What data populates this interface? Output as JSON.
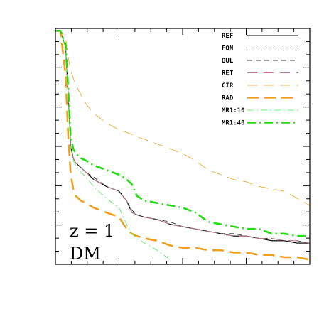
{
  "chart_data": {
    "type": "line",
    "x": [
      0.0,
      0.02,
      0.04,
      0.05,
      0.06,
      0.07,
      0.08,
      0.1,
      0.12,
      0.15,
      0.2,
      0.25,
      0.28,
      0.3,
      0.32,
      0.35,
      0.4,
      0.45,
      0.5,
      0.55,
      0.6,
      0.65,
      0.7,
      0.75,
      0.8,
      0.85,
      0.9,
      0.95,
      1.0
    ],
    "xlim": [
      0,
      1
    ],
    "ylim": [
      0,
      1
    ],
    "grid": false,
    "legend_position": "top-right",
    "series": [
      {
        "name": "REF",
        "color": "#000000",
        "style": "solid",
        "width": 1.1,
        "values": [
          0.99,
          0.99,
          0.92,
          0.72,
          0.5,
          0.45,
          0.43,
          0.41,
          0.39,
          0.36,
          0.33,
          0.31,
          0.27,
          0.22,
          0.21,
          0.2,
          0.19,
          0.17,
          0.16,
          0.15,
          0.14,
          0.13,
          0.12,
          0.12,
          0.11,
          0.1,
          0.1,
          0.09,
          0.09
        ]
      },
      {
        "name": "FON",
        "color": "#000000",
        "style": "dotted",
        "width": 1.0,
        "values": [
          0.99,
          0.99,
          0.92,
          0.72,
          0.5,
          0.45,
          0.43,
          0.41,
          0.39,
          0.36,
          0.33,
          0.31,
          0.27,
          0.22,
          0.21,
          0.2,
          0.19,
          0.17,
          0.16,
          0.15,
          0.14,
          0.13,
          0.12,
          0.12,
          0.11,
          0.1,
          0.1,
          0.09,
          0.09
        ]
      },
      {
        "name": "BUL",
        "color": "#444444",
        "style": "dashed",
        "width": 1.0,
        "values": [
          0.99,
          0.99,
          0.92,
          0.72,
          0.5,
          0.45,
          0.43,
          0.41,
          0.39,
          0.37,
          0.33,
          0.31,
          0.27,
          0.23,
          0.21,
          0.2,
          0.19,
          0.18,
          0.16,
          0.15,
          0.14,
          0.13,
          0.13,
          0.12,
          0.11,
          0.11,
          0.1,
          0.1,
          0.09
        ]
      },
      {
        "name": "RET",
        "color": "#c0788a",
        "style": "longdash",
        "width": 1.0,
        "values": [
          0.99,
          0.99,
          0.92,
          0.72,
          0.5,
          0.45,
          0.43,
          0.41,
          0.39,
          0.36,
          0.33,
          0.31,
          0.27,
          0.22,
          0.21,
          0.2,
          0.19,
          0.17,
          0.16,
          0.15,
          0.14,
          0.13,
          0.12,
          0.12,
          0.11,
          0.11,
          0.1,
          0.1,
          0.09
        ]
      },
      {
        "name": "CIR",
        "color": "#f0a020",
        "style": "longdash",
        "width": 0.8,
        "values": [
          0.99,
          0.99,
          0.96,
          0.88,
          0.82,
          0.79,
          0.76,
          0.72,
          0.68,
          0.64,
          0.6,
          0.57,
          0.56,
          0.55,
          0.54,
          0.53,
          0.51,
          0.49,
          0.47,
          0.44,
          0.4,
          0.38,
          0.36,
          0.35,
          0.33,
          0.32,
          0.31,
          0.28,
          0.25
        ]
      },
      {
        "name": "RAD",
        "color": "#f0a020",
        "style": "longdash",
        "width": 2.6,
        "values": [
          0.99,
          0.99,
          0.8,
          0.55,
          0.38,
          0.32,
          0.29,
          0.27,
          0.26,
          0.24,
          0.22,
          0.2,
          0.15,
          0.13,
          0.12,
          0.11,
          0.1,
          0.08,
          0.07,
          0.07,
          0.06,
          0.06,
          0.05,
          0.05,
          0.04,
          0.04,
          0.03,
          0.03,
          0.02
        ]
      },
      {
        "name": "MR1:10",
        "color": "#44ee44",
        "style": "dashdot",
        "width": 0.8,
        "values": [
          0.99,
          0.99,
          0.92,
          0.72,
          0.49,
          0.44,
          0.42,
          0.39,
          0.37,
          0.33,
          0.28,
          0.24,
          0.17,
          0.13,
          0.11,
          0.09,
          0.06,
          0.02,
          null,
          null,
          null,
          null,
          null,
          null,
          null,
          null,
          null,
          null,
          null
        ]
      },
      {
        "name": "MR1:40",
        "color": "#22dd11",
        "style": "dashdot",
        "width": 2.6,
        "values": [
          0.99,
          0.99,
          0.93,
          0.75,
          0.54,
          0.49,
          0.47,
          0.45,
          0.44,
          0.42,
          0.4,
          0.38,
          0.36,
          0.34,
          0.29,
          0.27,
          0.26,
          0.25,
          0.24,
          0.22,
          0.18,
          0.17,
          0.16,
          0.15,
          0.15,
          0.13,
          0.13,
          0.12,
          0.12
        ]
      }
    ],
    "annotations": [
      "z = 1",
      "DM"
    ]
  }
}
